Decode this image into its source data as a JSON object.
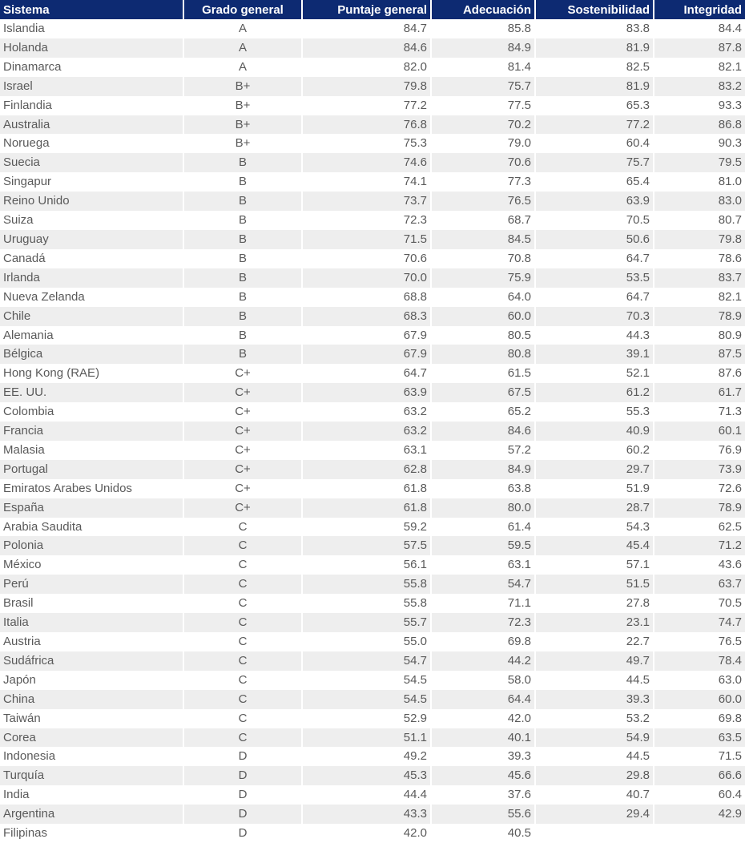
{
  "colors": {
    "header_bg": "#0d2a72",
    "header_text": "#ffffff",
    "row_alt": "#eeeeee",
    "text": "#5a5a5a"
  },
  "table": {
    "headers": [
      "Sistema",
      "Grado general",
      "Puntaje general",
      "Adecuación",
      "Sostenibilidad",
      "Integridad"
    ],
    "rows": [
      [
        "Islandia",
        "A",
        "84.7",
        "85.8",
        "83.8",
        "84.4"
      ],
      [
        "Holanda",
        "A",
        "84.6",
        "84.9",
        "81.9",
        "87.8"
      ],
      [
        "Dinamarca",
        "A",
        "82.0",
        "81.4",
        "82.5",
        "82.1"
      ],
      [
        "Israel",
        "B+",
        "79.8",
        "75.7",
        "81.9",
        "83.2"
      ],
      [
        "Finlandia",
        "B+",
        "77.2",
        "77.5",
        "65.3",
        "93.3"
      ],
      [
        "Australia",
        "B+",
        "76.8",
        "70.2",
        "77.2",
        "86.8"
      ],
      [
        "Noruega",
        "B+",
        "75.3",
        "79.0",
        "60.4",
        "90.3"
      ],
      [
        "Suecia",
        "B",
        "74.6",
        "70.6",
        "75.7",
        "79.5"
      ],
      [
        "Singapur",
        "B",
        "74.1",
        "77.3",
        "65.4",
        "81.0"
      ],
      [
        "Reino Unido",
        "B",
        "73.7",
        "76.5",
        "63.9",
        "83.0"
      ],
      [
        "Suiza",
        "B",
        "72.3",
        "68.7",
        "70.5",
        "80.7"
      ],
      [
        "Uruguay",
        "B",
        "71.5",
        "84.5",
        "50.6",
        "79.8"
      ],
      [
        "Canadá",
        "B",
        "70.6",
        "70.8",
        "64.7",
        "78.6"
      ],
      [
        "Irlanda",
        "B",
        "70.0",
        "75.9",
        "53.5",
        "83.7"
      ],
      [
        "Nueva Zelanda",
        "B",
        "68.8",
        "64.0",
        "64.7",
        "82.1"
      ],
      [
        "Chile",
        "B",
        "68.3",
        "60.0",
        "70.3",
        "78.9"
      ],
      [
        "Alemania",
        "B",
        "67.9",
        "80.5",
        "44.3",
        "80.9"
      ],
      [
        "Bélgica",
        "B",
        "67.9",
        "80.8",
        "39.1",
        "87.5"
      ],
      [
        "Hong Kong (RAE)",
        "C+",
        "64.7",
        "61.5",
        "52.1",
        "87.6"
      ],
      [
        "EE. UU.",
        "C+",
        "63.9",
        "67.5",
        "61.2",
        "61.7"
      ],
      [
        "Colombia",
        "C+",
        "63.2",
        "65.2",
        "55.3",
        "71.3"
      ],
      [
        "Francia",
        "C+",
        "63.2",
        "84.6",
        "40.9",
        "60.1"
      ],
      [
        "Malasia",
        "C+",
        "63.1",
        "57.2",
        "60.2",
        "76.9"
      ],
      [
        "Portugal",
        "C+",
        "62.8",
        "84.9",
        "29.7",
        "73.9"
      ],
      [
        "Emiratos Arabes Unidos",
        "C+",
        "61.8",
        "63.8",
        "51.9",
        "72.6"
      ],
      [
        "España",
        "C+",
        "61.8",
        "80.0",
        "28.7",
        "78.9"
      ],
      [
        "Arabia Saudita",
        "C",
        "59.2",
        "61.4",
        "54.3",
        "62.5"
      ],
      [
        "Polonia",
        "C",
        "57.5",
        "59.5",
        "45.4",
        "71.2"
      ],
      [
        "México",
        "C",
        "56.1",
        "63.1",
        "57.1",
        "43.6"
      ],
      [
        "Perú",
        "C",
        "55.8",
        "54.7",
        "51.5",
        "63.7"
      ],
      [
        "Brasil",
        "C",
        "55.8",
        "71.1",
        "27.8",
        "70.5"
      ],
      [
        "Italia",
        "C",
        "55.7",
        "72.3",
        "23.1",
        "74.7"
      ],
      [
        "Austria",
        "C",
        "55.0",
        "69.8",
        "22.7",
        "76.5"
      ],
      [
        "Sudáfrica",
        "C",
        "54.7",
        "44.2",
        "49.7",
        "78.4"
      ],
      [
        "Japón",
        "C",
        "54.5",
        "58.0",
        "44.5",
        "63.0"
      ],
      [
        "China",
        "C",
        "54.5",
        "64.4",
        "39.3",
        "60.0"
      ],
      [
        "Taiwán",
        "C",
        "52.9",
        "42.0",
        "53.2",
        "69.8"
      ],
      [
        "Corea",
        "C",
        "51.1",
        "40.1",
        "54.9",
        "63.5"
      ],
      [
        "Indonesia",
        "D",
        "49.2",
        "39.3",
        "44.5",
        "71.5"
      ],
      [
        "Turquía",
        "D",
        "45.3",
        "45.6",
        "29.8",
        "66.6"
      ],
      [
        "India",
        "D",
        "44.4",
        "37.6",
        "40.7",
        "60.4"
      ],
      [
        "Argentina",
        "D",
        "43.3",
        "55.6",
        "29.4",
        "42.9"
      ],
      [
        "Filipinas",
        "D",
        "42.0",
        "40.5",
        "",
        ""
      ]
    ]
  }
}
